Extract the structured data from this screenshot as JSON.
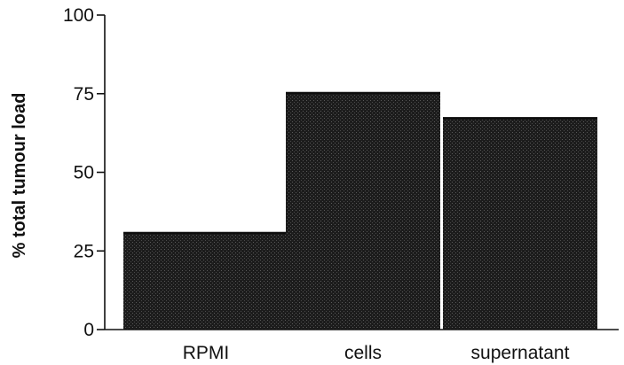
{
  "chart_data": {
    "type": "bar",
    "title": "",
    "xlabel": "",
    "ylabel": "% total tumour load",
    "categories": [
      "RPMI",
      "cells",
      "supernatant"
    ],
    "values": [
      31,
      75.5,
      67.5
    ],
    "ylim": [
      0,
      100
    ],
    "yticks": [
      0,
      25,
      50,
      75,
      100
    ],
    "ytick_labels": [
      "0",
      "25",
      "50",
      "75",
      "100"
    ],
    "grid": false,
    "legend": "none",
    "bar_color": "#1c1c1c"
  }
}
